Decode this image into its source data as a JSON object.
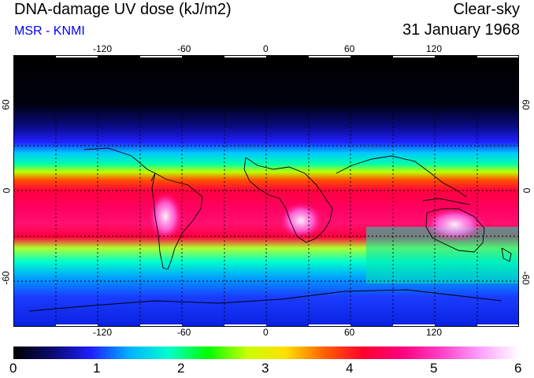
{
  "header": {
    "title": "DNA-damage UV dose (kJ/m2)",
    "source": "MSR - KNMI",
    "condition": "Clear-sky",
    "date": "31 January 1968"
  },
  "map": {
    "projection": "equirectangular",
    "lon_ticks": [
      "-120",
      "-60",
      "0",
      "60",
      "120"
    ],
    "lat_ticks_left": [
      "60",
      "0",
      "-60"
    ],
    "lat_ticks_right": [
      "60",
      "0",
      "-60"
    ],
    "gridlines": "dotted every 30 degrees"
  },
  "colorbar": {
    "labels": [
      "0",
      "1",
      "2",
      "3",
      "4",
      "5",
      "6"
    ],
    "min": 0,
    "max": 6,
    "colors": [
      "#000000",
      "#0a0a6e",
      "#1f1fff",
      "#00b4ff",
      "#00ffcc",
      "#00ff00",
      "#c8ff00",
      "#ffe000",
      "#ff6000",
      "#ff0030",
      "#ff0080",
      "#ff40c8",
      "#ffa0ff",
      "#ffffff"
    ]
  }
}
